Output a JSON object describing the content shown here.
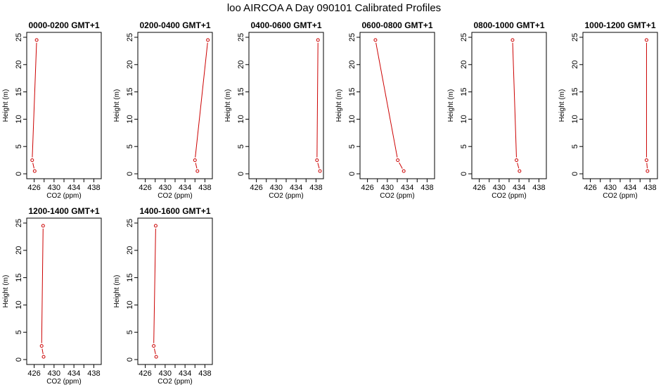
{
  "figure": {
    "title": "loo AIRCOA A  Day 090101  Calibrated Profiles"
  },
  "chart_data": [
    {
      "type": "line",
      "title": "0000-0200 GMT+1",
      "xlabel": "CO2 (ppm)",
      "ylabel": "Height (m)",
      "xlim": [
        424.5,
        439.5
      ],
      "ylim": [
        -0.9,
        25.9
      ],
      "xticks": [
        426,
        430,
        434,
        438
      ],
      "yticks": [
        0,
        5,
        10,
        15,
        20,
        25
      ],
      "series": [
        {
          "color": "#cc0000",
          "x": [
            426.1,
            425.6,
            426.5
          ],
          "y": [
            0.5,
            2.5,
            24.5
          ]
        }
      ]
    },
    {
      "type": "line",
      "title": "0200-0400 GMT+1",
      "xlabel": "CO2 (ppm)",
      "ylabel": "Height (m)",
      "xlim": [
        424.5,
        439.5
      ],
      "ylim": [
        -0.9,
        25.9
      ],
      "xticks": [
        426,
        430,
        434,
        438
      ],
      "yticks": [
        0,
        5,
        10,
        15,
        20,
        25
      ],
      "series": [
        {
          "color": "#cc0000",
          "x": [
            436.5,
            436.0,
            438.6
          ],
          "y": [
            0.5,
            2.5,
            24.5
          ]
        }
      ]
    },
    {
      "type": "line",
      "title": "0400-0600 GMT+1",
      "xlabel": "CO2 (ppm)",
      "ylabel": "Height (m)",
      "xlim": [
        424.5,
        439.5
      ],
      "ylim": [
        -0.9,
        25.9
      ],
      "xticks": [
        426,
        430,
        434,
        438
      ],
      "yticks": [
        0,
        5,
        10,
        15,
        20,
        25
      ],
      "series": [
        {
          "color": "#cc0000",
          "x": [
            438.8,
            438.2,
            438.4
          ],
          "y": [
            0.5,
            2.5,
            24.5
          ]
        }
      ]
    },
    {
      "type": "line",
      "title": "0600-0800 GMT+1",
      "xlabel": "CO2 (ppm)",
      "ylabel": "Height (m)",
      "xlim": [
        424.5,
        439.5
      ],
      "ylim": [
        -0.9,
        25.9
      ],
      "xticks": [
        426,
        430,
        434,
        438
      ],
      "yticks": [
        0,
        5,
        10,
        15,
        20,
        25
      ],
      "series": [
        {
          "color": "#cc0000",
          "x": [
            433.3,
            432.1,
            427.6
          ],
          "y": [
            0.5,
            2.5,
            24.5
          ]
        }
      ]
    },
    {
      "type": "line",
      "title": "0800-1000 GMT+1",
      "xlabel": "CO2 (ppm)",
      "ylabel": "Height (m)",
      "xlim": [
        424.5,
        439.5
      ],
      "ylim": [
        -0.9,
        25.9
      ],
      "xticks": [
        426,
        430,
        434,
        438
      ],
      "yticks": [
        0,
        5,
        10,
        15,
        20,
        25
      ],
      "series": [
        {
          "color": "#cc0000",
          "x": [
            434.1,
            433.5,
            432.7
          ],
          "y": [
            0.5,
            2.5,
            24.5
          ]
        }
      ]
    },
    {
      "type": "line",
      "title": "1000-1200 GMT+1",
      "xlabel": "CO2 (ppm)",
      "ylabel": "Height (m)",
      "xlim": [
        424.5,
        439.5
      ],
      "ylim": [
        -0.9,
        25.9
      ],
      "xticks": [
        426,
        430,
        434,
        438
      ],
      "yticks": [
        0,
        5,
        10,
        15,
        20,
        25
      ],
      "series": [
        {
          "color": "#cc0000",
          "x": [
            437.5,
            437.3,
            437.3
          ],
          "y": [
            0.5,
            2.5,
            24.5
          ]
        }
      ]
    },
    {
      "type": "line",
      "title": "1200-1400 GMT+1",
      "xlabel": "CO2 (ppm)",
      "ylabel": "Height (m)",
      "xlim": [
        424.5,
        439.5
      ],
      "ylim": [
        -0.9,
        25.9
      ],
      "xticks": [
        426,
        430,
        434,
        438
      ],
      "yticks": [
        0,
        5,
        10,
        15,
        20,
        25
      ],
      "series": [
        {
          "color": "#cc0000",
          "x": [
            427.9,
            427.5,
            427.8
          ],
          "y": [
            0.5,
            2.5,
            24.5
          ]
        }
      ]
    },
    {
      "type": "line",
      "title": "1400-1600 GMT+1",
      "xlabel": "CO2 (ppm)",
      "ylabel": "Height (m)",
      "xlim": [
        424.5,
        439.5
      ],
      "ylim": [
        -0.9,
        25.9
      ],
      "xticks": [
        426,
        430,
        434,
        438
      ],
      "yticks": [
        0,
        5,
        10,
        15,
        20,
        25
      ],
      "series": [
        {
          "color": "#cc0000",
          "x": [
            428.2,
            427.7,
            428.1
          ],
          "y": [
            0.5,
            2.5,
            24.5
          ]
        }
      ]
    }
  ]
}
